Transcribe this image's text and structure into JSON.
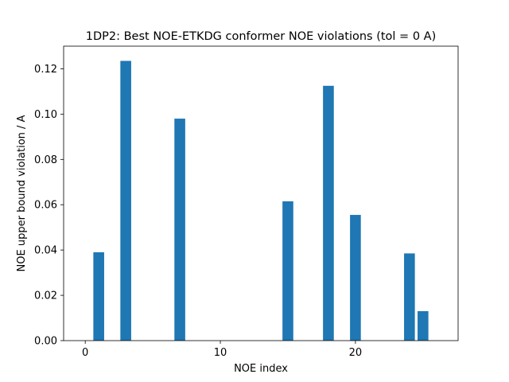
{
  "chart_data": {
    "type": "bar",
    "title": "1DP2: Best NOE-ETKDG conformer NOE violations (tol = 0 A)",
    "xlabel": "NOE index",
    "ylabel": "NOE upper bound violation / A",
    "x": [
      1,
      3,
      7,
      15,
      18,
      20,
      24,
      25
    ],
    "values": [
      0.039,
      0.1235,
      0.098,
      0.0615,
      0.1125,
      0.0555,
      0.0385,
      0.013
    ],
    "bar_width": 0.8,
    "xlim": [
      -1.6,
      27.6
    ],
    "ylim": [
      0,
      0.13
    ],
    "xticks": [
      0,
      10,
      20
    ],
    "xtick_labels": [
      "0",
      "10",
      "20"
    ],
    "yticks": [
      0,
      0.02,
      0.04,
      0.06,
      0.08,
      0.1,
      0.12
    ],
    "ytick_labels": [
      "0.00",
      "0.02",
      "0.04",
      "0.06",
      "0.08",
      "0.10",
      "0.12"
    ],
    "grid": false,
    "bar_color": "#1f77b4"
  }
}
